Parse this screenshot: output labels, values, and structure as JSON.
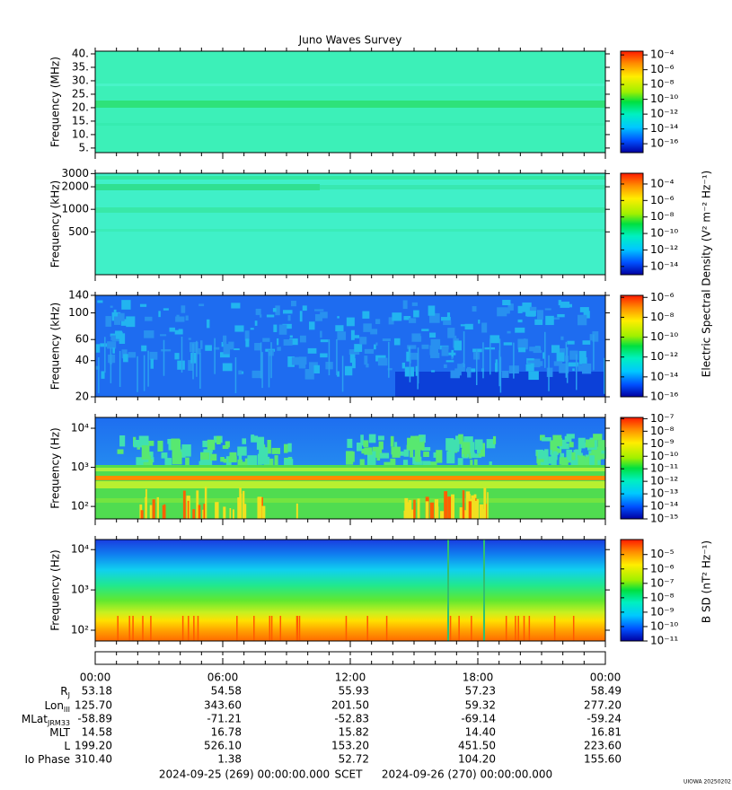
{
  "title": "Juno Waves Survey",
  "time_axis": {
    "xlim": [
      0,
      24
    ],
    "xticks": [
      {
        "value": 0,
        "label": "00:00"
      },
      {
        "value": 6,
        "label": "06:00"
      },
      {
        "value": 12,
        "label": "12:00"
      },
      {
        "value": 18,
        "label": "18:00"
      },
      {
        "value": 24,
        "label": "00:00"
      }
    ]
  },
  "chart_data": [
    {
      "type": "spectrogram",
      "ylabel": "Frequency (MHz)",
      "log": false,
      "ylim": [
        3.3,
        41
      ],
      "yticks": [
        {
          "value": 5,
          "label": "5."
        },
        {
          "value": 10,
          "label": "10."
        },
        {
          "value": 15,
          "label": "15."
        },
        {
          "value": 20,
          "label": "20."
        },
        {
          "value": 25,
          "label": "25."
        },
        {
          "value": 30,
          "label": "30."
        },
        {
          "value": 35,
          "label": "35."
        },
        {
          "value": 40,
          "label": "40."
        }
      ],
      "colorbar": {
        "log": true,
        "clim": [
          6.3e-18,
          0.00032
        ],
        "ticks": [
          {
            "value": 0.0001,
            "label": "10⁻⁴"
          },
          {
            "value": 1e-06,
            "label": "10⁻⁶"
          },
          {
            "value": 1e-08,
            "label": "10⁻⁸"
          },
          {
            "value": 1e-10,
            "label": "10⁻¹⁰"
          },
          {
            "value": 1e-12,
            "label": "10⁻¹²"
          },
          {
            "value": 1e-14,
            "label": "10⁻¹⁴"
          },
          {
            "value": 1e-16,
            "label": "10⁻¹⁶"
          }
        ]
      }
    },
    {
      "type": "spectrogram",
      "ylabel": "Frequency (kHz)",
      "log": true,
      "ylim": [
        134,
        3030
      ],
      "yticks": [
        500,
        1000,
        2000,
        3000
      ],
      "colorbar": {
        "log": true,
        "clim": [
          1e-15,
          0.002
        ],
        "ticks": [
          {
            "value": 0.0001,
            "label": "10⁻⁴"
          },
          {
            "value": 1e-06,
            "label": "10⁻⁶"
          },
          {
            "value": 1e-08,
            "label": "10⁻⁸"
          },
          {
            "value": 1e-10,
            "label": "10⁻¹⁰"
          },
          {
            "value": 1e-12,
            "label": "10⁻¹²"
          },
          {
            "value": 1e-14,
            "label": "10⁻¹⁴"
          }
        ]
      }
    },
    {
      "type": "spectrogram",
      "ylabel": "Frequency (kHz)",
      "log": true,
      "ylim": [
        20,
        140
      ],
      "yticks": [
        20,
        40,
        60,
        100,
        140
      ],
      "colorbar": {
        "log": true,
        "clim": [
          1e-16,
          1.6e-06
        ],
        "ticks": [
          {
            "value": 1e-06,
            "label": "10⁻⁶"
          },
          {
            "value": 1e-08,
            "label": "10⁻⁸"
          },
          {
            "value": 1e-10,
            "label": "10⁻¹⁰"
          },
          {
            "value": 1e-12,
            "label": "10⁻¹²"
          },
          {
            "value": 1e-14,
            "label": "10⁻¹⁴"
          },
          {
            "value": 1e-16,
            "label": "10⁻¹⁶"
          }
        ]
      }
    },
    {
      "type": "spectrogram",
      "ylabel": "Frequency (Hz)",
      "log": true,
      "ylim": [
        48,
        18900
      ],
      "yticks": [
        {
          "value": 100,
          "label": "10²"
        },
        {
          "value": 1000,
          "label": "10³"
        },
        {
          "value": 10000,
          "label": "10⁴"
        }
      ],
      "colorbar": {
        "log": true,
        "clim": [
          1e-15,
          1.26e-07
        ],
        "ticks": [
          {
            "value": 1e-07,
            "label": "10⁻⁷"
          },
          {
            "value": 1e-08,
            "label": "10⁻⁸"
          },
          {
            "value": 1e-09,
            "label": "10⁻⁹"
          },
          {
            "value": 1e-10,
            "label": "10⁻¹⁰"
          },
          {
            "value": 1e-11,
            "label": "10⁻¹¹"
          },
          {
            "value": 1e-12,
            "label": "10⁻¹²"
          },
          {
            "value": 1e-13,
            "label": "10⁻¹³"
          },
          {
            "value": 1e-14,
            "label": "10⁻¹⁴"
          },
          {
            "value": 1e-15,
            "label": "10⁻¹⁵"
          }
        ]
      }
    },
    {
      "type": "spectrogram",
      "ylabel": "Frequency (Hz)",
      "log": true,
      "ylim": [
        54,
        17800
      ],
      "yticks": [
        {
          "value": 100,
          "label": "10²"
        },
        {
          "value": 1000,
          "label": "10³"
        },
        {
          "value": 10000,
          "label": "10⁴"
        }
      ],
      "colorbar": {
        "log": true,
        "clim": [
          1e-11,
          0.00011
        ],
        "ticks": [
          {
            "value": 1e-05,
            "label": "10⁻⁵"
          },
          {
            "value": 1e-06,
            "label": "10⁻⁶"
          },
          {
            "value": 1e-07,
            "label": "10⁻⁷"
          },
          {
            "value": 1e-08,
            "label": "10⁻⁸"
          },
          {
            "value": 1e-09,
            "label": "10⁻⁹"
          },
          {
            "value": 1e-10,
            "label": "10⁻¹⁰"
          },
          {
            "value": 1e-11,
            "label": "10⁻¹¹"
          }
        ]
      }
    }
  ],
  "colorbar_labels": [
    "Electric Spectral Density (V² m⁻² Hz⁻¹)",
    "B SD (nT² Hz⁻¹)"
  ],
  "ephemeris": [
    {
      "label": {
        "text": "R",
        "sub": "J"
      },
      "values": [
        "53.18",
        "54.58",
        "55.93",
        "57.23",
        "58.49"
      ]
    },
    {
      "label": {
        "text": "Lon",
        "sub": "III"
      },
      "values": [
        "125.70",
        "343.60",
        "201.50",
        "59.32",
        "277.20"
      ]
    },
    {
      "label": {
        "text": "MLat",
        "sub": "JRM33"
      },
      "values": [
        "-58.89",
        "-71.21",
        "-52.83",
        "-69.14",
        "-59.24"
      ]
    },
    {
      "label": {
        "text": "MLT"
      },
      "values": [
        "14.58",
        "16.78",
        "15.82",
        "14.40",
        "16.81"
      ]
    },
    {
      "label": {
        "text": "L"
      },
      "values": [
        "199.20",
        "526.10",
        "153.20",
        "451.50",
        "223.60"
      ]
    },
    {
      "label": {
        "text": "Io Phase"
      },
      "values": [
        "310.40",
        "1.38",
        "52.72",
        "104.20",
        "155.60"
      ]
    }
  ],
  "footer": {
    "start": "2024-09-25 (269) 00:00:00.000",
    "scet": "SCET",
    "end": "2024-09-26 (270) 00:00:00.000",
    "stamp": "UIOWA 20250202"
  }
}
